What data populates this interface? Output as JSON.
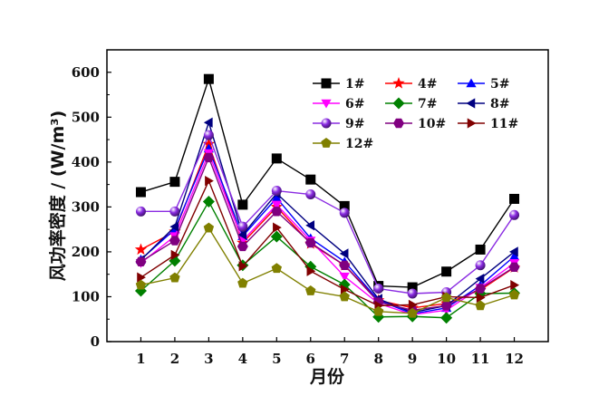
{
  "chart_data": {
    "type": "line",
    "xlabel": "月份",
    "ylabel": "风功率密度 / (W/m³)",
    "x": [
      1,
      2,
      3,
      4,
      5,
      6,
      7,
      8,
      9,
      10,
      11,
      12
    ],
    "xlim": [
      0,
      13
    ],
    "ylim": [
      0,
      650
    ],
    "yticks": [
      0,
      100,
      200,
      300,
      400,
      500,
      600
    ],
    "grid": false,
    "legend_position": "top-right",
    "series": [
      {
        "name": "1#",
        "color": "#000000",
        "marker": "square",
        "values": [
          333,
          356,
          585,
          305,
          408,
          361,
          302,
          124,
          121,
          156,
          205,
          318
        ]
      },
      {
        "name": "4#",
        "color": "#ff0000",
        "marker": "star",
        "values": [
          205,
          245,
          440,
          220,
          300,
          218,
          170,
          92,
          75,
          85,
          115,
          165
        ]
      },
      {
        "name": "5#",
        "color": "#0000ff",
        "marker": "triangle-up",
        "values": [
          183,
          250,
          430,
          235,
          320,
          230,
          178,
          92,
          62,
          75,
          125,
          190
        ]
      },
      {
        "name": "6#",
        "color": "#ff00ff",
        "marker": "triangle-down",
        "values": [
          175,
          235,
          420,
          225,
          305,
          225,
          145,
          85,
          60,
          70,
          120,
          175
        ]
      },
      {
        "name": "7#",
        "color": "#008000",
        "marker": "diamond",
        "values": [
          113,
          180,
          312,
          170,
          234,
          167,
          127,
          55,
          56,
          53,
          107,
          108
        ]
      },
      {
        "name": "8#",
        "color": "#000080",
        "marker": "triangle-left",
        "values": [
          182,
          256,
          488,
          238,
          330,
          259,
          196,
          95,
          65,
          80,
          140,
          200
        ]
      },
      {
        "name": "9#",
        "color": "#8a2be2",
        "marker": "sphere",
        "values": [
          290,
          290,
          460,
          256,
          336,
          328,
          287,
          118,
          107,
          110,
          170,
          282
        ]
      },
      {
        "name": "10#",
        "color": "#800080",
        "marker": "hexagon",
        "values": [
          178,
          225,
          410,
          212,
          290,
          220,
          170,
          88,
          70,
          80,
          118,
          166
        ]
      },
      {
        "name": "11#",
        "color": "#800000",
        "marker": "triangle-right",
        "values": [
          143,
          193,
          358,
          168,
          254,
          157,
          116,
          80,
          82,
          100,
          98,
          126
        ]
      },
      {
        "name": "12#",
        "color": "#808000",
        "marker": "pentagon",
        "values": [
          126,
          142,
          253,
          130,
          163,
          113,
          100,
          67,
          63,
          98,
          80,
          104
        ]
      }
    ]
  }
}
